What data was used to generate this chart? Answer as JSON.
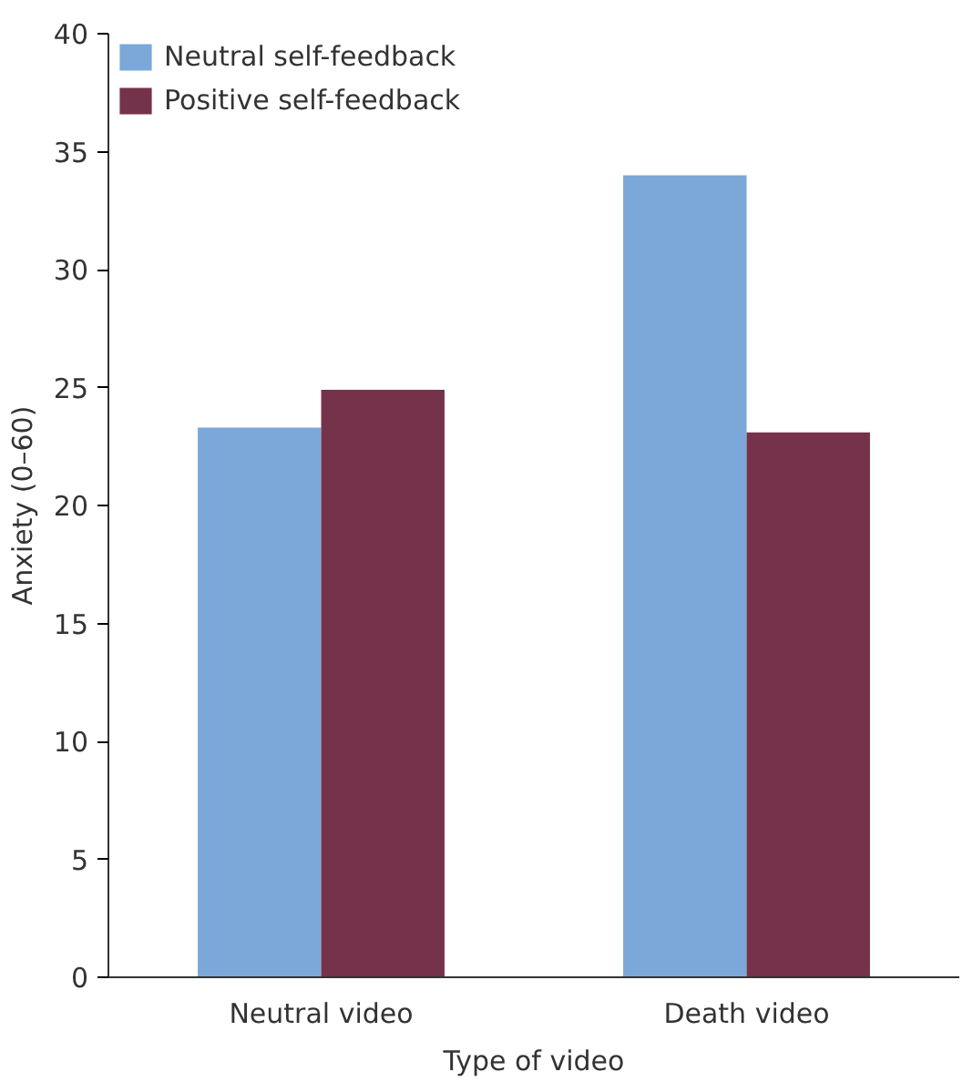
{
  "chart_data": {
    "type": "bar",
    "xlabel": "Type of video",
    "ylabel": "Anxiety (0–60)",
    "categories": [
      "Neutral video",
      "Death video"
    ],
    "series": [
      {
        "name": "Neutral self-feedback",
        "color": "#7ba7d9",
        "values": [
          23.3,
          34.0
        ]
      },
      {
        "name": "Positive self-feedback",
        "color": "#74334a",
        "values": [
          24.9,
          23.1
        ]
      }
    ],
    "ylim": [
      0,
      40
    ],
    "yticks": [
      0,
      5,
      10,
      15,
      20,
      25,
      30,
      35,
      40
    ],
    "grid": false,
    "legend": "top left"
  }
}
